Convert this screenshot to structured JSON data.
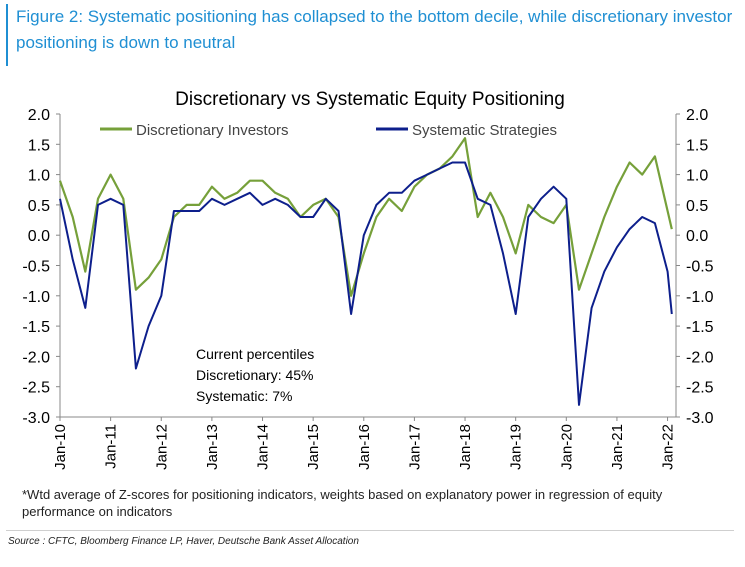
{
  "figure_caption": "Figure 2: Systematic positioning has collapsed to the bottom decile, while discretionary investor positioning is down to neutral",
  "footnote": "*Wtd average of Z-scores for positioning indicators, weights based on explanatory power in regression of equity performance on indicators",
  "source": "Source : CFTC, Bloomberg Finance LP, Haver, Deutsche Bank Asset Allocation",
  "chart_data": {
    "type": "line",
    "title": "Discretionary  vs Systematic Equity Positioning",
    "xlabel": "",
    "ylabel": "",
    "ylim": [
      -3.0,
      2.0
    ],
    "y_ticks": [
      "2.0",
      "1.5",
      "1.0",
      "0.5",
      "0.0",
      "-0.5",
      "-1.0",
      "-1.5",
      "-2.0",
      "-2.5",
      "-3.0"
    ],
    "x_tick_labels": [
      "Jan-10",
      "Jan-11",
      "Jan-12",
      "Jan-13",
      "Jan-14",
      "Jan-15",
      "Jan-16",
      "Jan-17",
      "Jan-18",
      "Jan-19",
      "Jan-20",
      "Jan-21",
      "Jan-22"
    ],
    "legend_position": "top",
    "grid": false,
    "x": [
      "2010-01",
      "2010-04",
      "2010-07",
      "2010-10",
      "2011-01",
      "2011-04",
      "2011-07",
      "2011-10",
      "2012-01",
      "2012-04",
      "2012-07",
      "2012-10",
      "2013-01",
      "2013-04",
      "2013-07",
      "2013-10",
      "2014-01",
      "2014-04",
      "2014-07",
      "2014-10",
      "2015-01",
      "2015-04",
      "2015-07",
      "2015-10",
      "2016-01",
      "2016-04",
      "2016-07",
      "2016-10",
      "2017-01",
      "2017-04",
      "2017-07",
      "2017-10",
      "2018-01",
      "2018-04",
      "2018-07",
      "2018-10",
      "2019-01",
      "2019-04",
      "2019-07",
      "2019-10",
      "2020-01",
      "2020-04",
      "2020-07",
      "2020-10",
      "2021-01",
      "2021-04",
      "2021-07",
      "2021-10",
      "2022-01",
      "2022-02"
    ],
    "series": [
      {
        "name": "Discretionary Investors",
        "color": "#76a03a",
        "values": [
          0.9,
          0.3,
          -0.6,
          0.6,
          1.0,
          0.6,
          -0.9,
          -0.7,
          -0.4,
          0.3,
          0.5,
          0.5,
          0.8,
          0.6,
          0.7,
          0.9,
          0.9,
          0.7,
          0.6,
          0.3,
          0.5,
          0.6,
          0.3,
          -1.0,
          -0.3,
          0.3,
          0.6,
          0.4,
          0.8,
          1.0,
          1.1,
          1.3,
          1.6,
          0.3,
          0.7,
          0.3,
          -0.3,
          0.5,
          0.3,
          0.2,
          0.5,
          -0.9,
          -0.3,
          0.3,
          0.8,
          1.2,
          1.0,
          1.3,
          0.4,
          0.1
        ]
      },
      {
        "name": "Systematic Strategies",
        "color": "#0d1f8c",
        "values": [
          0.6,
          -0.4,
          -1.2,
          0.5,
          0.6,
          0.5,
          -2.2,
          -1.5,
          -1.0,
          0.4,
          0.4,
          0.4,
          0.6,
          0.5,
          0.6,
          0.7,
          0.5,
          0.6,
          0.5,
          0.3,
          0.3,
          0.6,
          0.4,
          -1.3,
          0.0,
          0.5,
          0.7,
          0.7,
          0.9,
          1.0,
          1.1,
          1.2,
          1.2,
          0.6,
          0.5,
          -0.3,
          -1.3,
          0.3,
          0.6,
          0.8,
          0.6,
          -2.8,
          -1.2,
          -0.6,
          -0.2,
          0.1,
          0.3,
          0.2,
          -0.6,
          -1.3
        ]
      }
    ],
    "annotation": [
      "Current percentiles",
      "Discretionary: 45%",
      "Systematic: 7%"
    ]
  }
}
